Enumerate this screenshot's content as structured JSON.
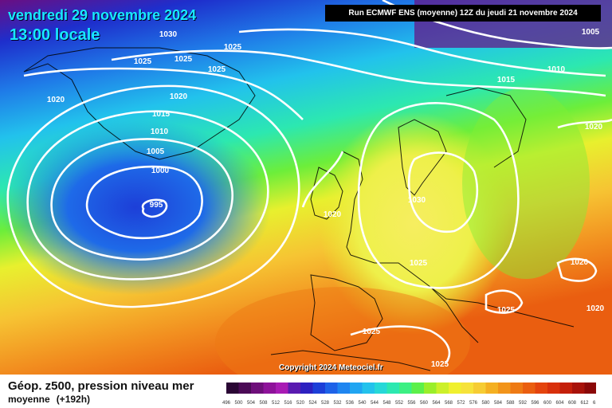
{
  "header": {
    "date": "vendredi 29 novembre 2024",
    "time": "13:00 locale",
    "run": "Run ECMWF ENS (moyenne) 12Z du jeudi 21 novembre 2024"
  },
  "copyright": "Copyright 2024 Meteociel.fr",
  "footer": {
    "title": "Géop. z500, pression niveau mer",
    "subtitle": "moyenne",
    "lead": "(+192h)"
  },
  "isobar_labels": [
    "1030",
    "1025",
    "1025",
    "1025",
    "1025",
    "1020",
    "1020",
    "1015",
    "1010",
    "1005",
    "1000",
    "995",
    "1005",
    "1010",
    "1015",
    "1020",
    "1020",
    "1030",
    "1025",
    "1020",
    "1025",
    "1020",
    "1025",
    "1025"
  ],
  "colorbar": {
    "ticks": [
      "496",
      "500",
      "504",
      "508",
      "512",
      "516",
      "520",
      "524",
      "528",
      "532",
      "536",
      "540",
      "544",
      "548",
      "552",
      "556",
      "560",
      "564",
      "568",
      "572",
      "576",
      "580",
      "584",
      "588",
      "592",
      "596",
      "600",
      "604",
      "608",
      "612",
      "616"
    ],
    "colors": [
      "#2a0634",
      "#4b0a56",
      "#6e0f7a",
      "#8e129a",
      "#a81bb4",
      "#5a1ab0",
      "#2d20c0",
      "#1d3fd8",
      "#1e62e8",
      "#1f85f0",
      "#20a5f2",
      "#23c2ec",
      "#26d8d8",
      "#2ce8b0",
      "#3cf083",
      "#5cf04a",
      "#9aee2a",
      "#ccf02a",
      "#f0f02e",
      "#f6e23a",
      "#f6cc33",
      "#f4b022",
      "#f2941a",
      "#ee7a14",
      "#ea5e10",
      "#e4440e",
      "#d8300c",
      "#c41f0a",
      "#a8120a",
      "#8a0808"
    ]
  }
}
